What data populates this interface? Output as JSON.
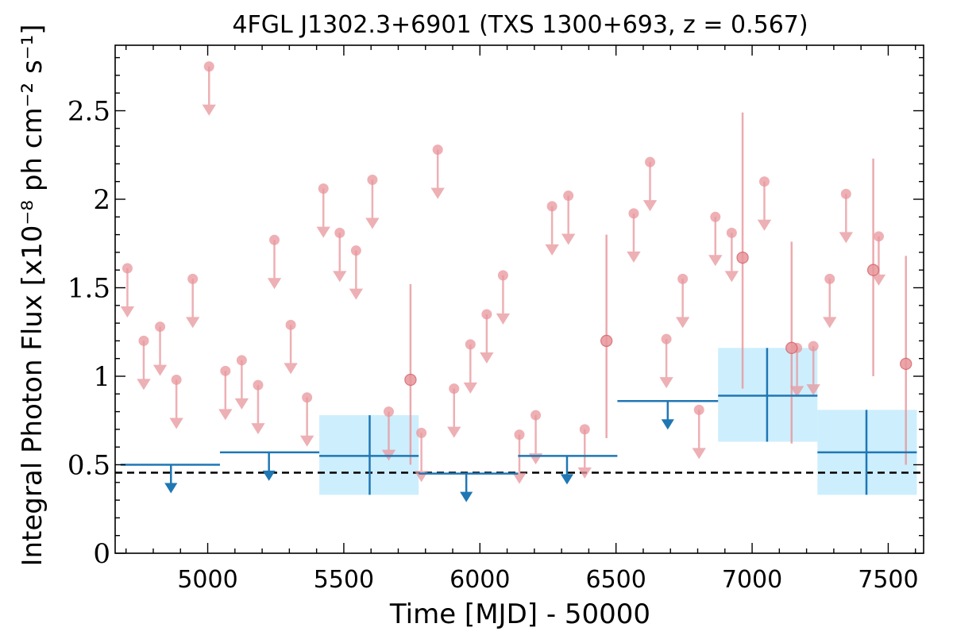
{
  "chart_data": {
    "type": "scatter",
    "title": "4FGL J1302.3+6901 (TXS 1300+693, z = 0.567)",
    "xlabel": "Time [MJD] - 50000",
    "ylabel": "Integral Photon Flux [x10⁻⁸ ph cm⁻² s⁻¹]",
    "xlim": [
      4660,
      7630
    ],
    "ylim": [
      0,
      2.87
    ],
    "xticks": [
      5000,
      5500,
      6000,
      6500,
      7000,
      7500
    ],
    "xtick_labels": [
      "5000",
      "5500",
      "6000",
      "6500",
      "7000",
      "7500"
    ],
    "yticks": [
      0,
      0.5,
      1,
      1.5,
      2,
      2.5
    ],
    "ytick_labels": [
      "0",
      "0.5",
      "1",
      "1.5",
      "2",
      "2.5"
    ],
    "reference_line_y": 0.455,
    "series": [
      {
        "kind": "short-bin-upper-limits",
        "color": "#e8969b",
        "x": [
          4705,
          4765,
          4825,
          4885,
          4945,
          5005,
          5065,
          5125,
          5185,
          5245,
          5305,
          5365,
          5425,
          5485,
          5545,
          5605,
          5665,
          5785,
          5845,
          5905,
          5965,
          6025,
          6085,
          6145,
          6205,
          6265,
          6325,
          6385,
          6565,
          6625,
          6685,
          6745,
          6805,
          6865,
          6925,
          7045,
          7165,
          7225,
          7285,
          7345,
          7465
        ],
        "y": [
          1.61,
          1.2,
          1.28,
          0.98,
          1.55,
          2.75,
          1.03,
          1.09,
          0.95,
          1.77,
          1.29,
          0.88,
          2.06,
          1.81,
          1.71,
          2.11,
          0.8,
          0.68,
          2.28,
          0.93,
          1.18,
          1.35,
          1.57,
          0.67,
          0.78,
          1.96,
          2.02,
          0.7,
          1.92,
          2.21,
          1.21,
          1.55,
          0.81,
          1.9,
          1.81,
          2.1,
          1.16,
          1.17,
          1.55,
          2.03,
          1.79
        ]
      },
      {
        "kind": "short-bin-detections",
        "color": "#e8969b",
        "x": [
          5745,
          6465,
          6965,
          7145,
          7445,
          7565
        ],
        "y": [
          0.98,
          1.2,
          1.67,
          1.16,
          1.6,
          1.07
        ],
        "y_low": [
          0.5,
          0.65,
          0.93,
          0.62,
          1.0,
          0.5
        ],
        "y_high": [
          1.52,
          1.8,
          2.49,
          1.76,
          2.23,
          1.68
        ]
      },
      {
        "kind": "long-bin-upper-limits",
        "color": "#1f77b4",
        "x": [
          4865,
          5225,
          5950,
          6320,
          6690
        ],
        "x_low": [
          4680,
          5045,
          5775,
          6140,
          6505
        ],
        "x_high": [
          5045,
          5410,
          6140,
          6505,
          6875
        ],
        "y": [
          0.5,
          0.57,
          0.45,
          0.55,
          0.86
        ]
      },
      {
        "kind": "long-bin-detections",
        "color": "#1f77b4",
        "band_color": "#cdeefd",
        "x": [
          5595,
          7055,
          7420
        ],
        "x_low": [
          5410,
          6875,
          7240
        ],
        "x_high": [
          5775,
          7240,
          7605
        ],
        "y": [
          0.55,
          0.89,
          0.57
        ],
        "y_low": [
          0.33,
          0.63,
          0.33
        ],
        "y_high": [
          0.78,
          1.16,
          0.81
        ]
      }
    ]
  }
}
